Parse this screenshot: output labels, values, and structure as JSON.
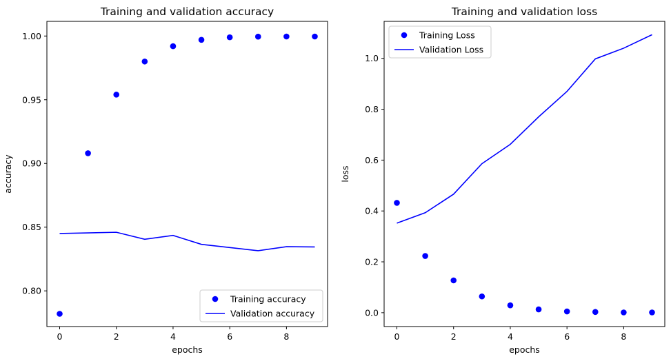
{
  "chart_data": [
    {
      "type": "scatter+line",
      "title": "Training and validation accuracy",
      "xlabel": "epochs",
      "ylabel": "accuracy",
      "xlim": [
        -0.45,
        9.45
      ],
      "ylim": [
        0.772,
        1.0115
      ],
      "xticks": [
        0,
        2,
        4,
        6,
        8
      ],
      "yticks": [
        0.8,
        0.85,
        0.9,
        0.95,
        1.0
      ],
      "x": [
        0,
        1,
        2,
        3,
        4,
        5,
        6,
        7,
        8,
        9
      ],
      "series": [
        {
          "name": "Training accuracy",
          "style": "points",
          "color": "#0000ff",
          "values": [
            0.782,
            0.908,
            0.954,
            0.98,
            0.992,
            0.997,
            0.999,
            0.9995,
            0.9996,
            0.9996
          ]
        },
        {
          "name": "Validation accuracy",
          "style": "line",
          "color": "#0000ff",
          "values": [
            0.845,
            0.8455,
            0.846,
            0.8405,
            0.8435,
            0.8365,
            0.834,
            0.8315,
            0.8347,
            0.8345
          ]
        }
      ],
      "legend": "lower-right",
      "grid": false
    },
    {
      "type": "scatter+line",
      "title": "Training and validation loss",
      "xlabel": "epochs",
      "ylabel": "loss",
      "xlim": [
        -0.45,
        9.45
      ],
      "ylim": [
        -0.0545,
        1.1455
      ],
      "xticks": [
        0,
        2,
        4,
        6,
        8
      ],
      "yticks": [
        0.0,
        0.2,
        0.4,
        0.6,
        0.8,
        1.0
      ],
      "x": [
        0,
        1,
        2,
        3,
        4,
        5,
        6,
        7,
        8,
        9
      ],
      "series": [
        {
          "name": "Training Loss",
          "style": "points",
          "color": "#0000ff",
          "values": [
            0.432,
            0.223,
            0.127,
            0.064,
            0.029,
            0.013,
            0.005,
            0.003,
            0.001,
            0.001
          ]
        },
        {
          "name": "Validation Loss",
          "style": "line",
          "color": "#0000ff",
          "values": [
            0.352,
            0.393,
            0.466,
            0.586,
            0.662,
            0.77,
            0.87,
            0.998,
            1.04,
            1.093
          ]
        }
      ],
      "legend": "upper-left",
      "grid": false
    }
  ]
}
